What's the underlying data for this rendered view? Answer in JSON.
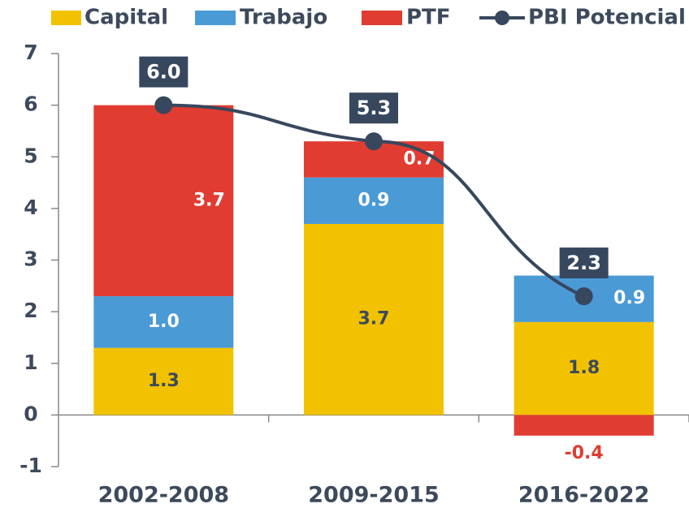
{
  "chart_data": {
    "type": "stacked-bar-line",
    "categories": [
      "2002-2008",
      "2009-2015",
      "2016-2022"
    ],
    "series": [
      {
        "name": "Capital",
        "color": "#f2c200",
        "values": [
          1.3,
          3.7,
          1.8
        ]
      },
      {
        "name": "Trabajo",
        "color": "#4a9ad6",
        "values": [
          1.0,
          0.9,
          0.9
        ],
        "value_labels": [
          "1.0",
          "0.9",
          "0.9"
        ]
      },
      {
        "name": "PTF",
        "color": "#e03c31",
        "values": [
          3.7,
          0.7,
          -0.4
        ]
      },
      {
        "name": "PBI Potencial",
        "color": "#37475e",
        "type": "line",
        "values": [
          6.0,
          5.3,
          2.3
        ],
        "value_labels": [
          "6.0",
          "5.3",
          "2.3"
        ]
      }
    ],
    "ylim": [
      -1,
      7
    ],
    "yticks": [
      -1,
      0,
      1,
      2,
      3,
      4,
      5,
      6,
      7
    ],
    "legend": "top"
  }
}
